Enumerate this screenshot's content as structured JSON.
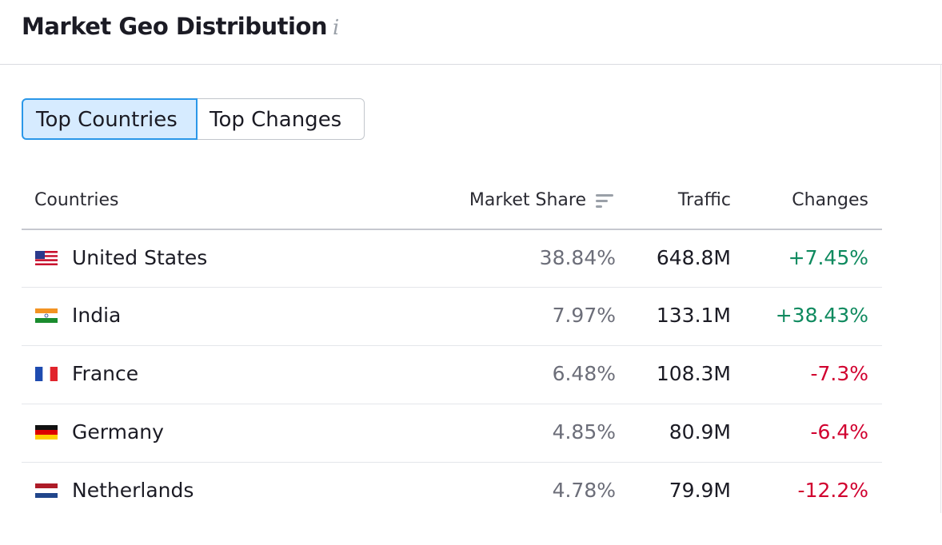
{
  "header": {
    "title": "Market Geo Distribution"
  },
  "tabs": [
    "Top Countries",
    "Top Changes"
  ],
  "table": {
    "columns": [
      "Countries",
      "Market Share",
      "Traffic",
      "Changes"
    ],
    "rows": [
      [
        "United States",
        "38.84%",
        "648.8M",
        "+7.45%"
      ],
      [
        "India",
        "7.97%",
        "133.1M",
        "+38.43%"
      ],
      [
        "France",
        "6.48%",
        "108.3M",
        "-7.3%"
      ],
      [
        "Germany",
        "4.85%",
        "80.9M",
        "-6.4%"
      ],
      [
        "Netherlands",
        "4.78%",
        "79.9M",
        "-12.2%"
      ]
    ]
  }
}
